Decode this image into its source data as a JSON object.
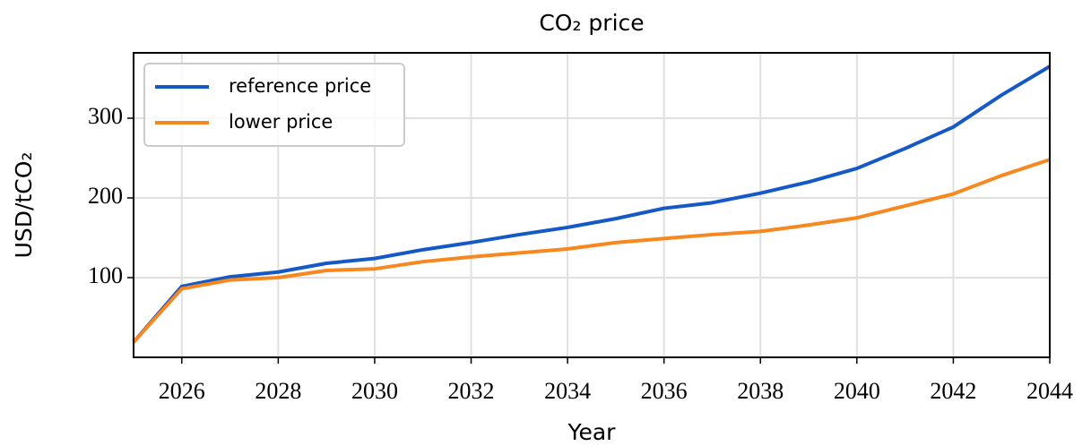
{
  "chart_data": {
    "type": "line",
    "title": "CO₂ price",
    "xlabel": "Year",
    "ylabel": "USD/tCO₂",
    "x": [
      2025,
      2026,
      2027,
      2028,
      2029,
      2030,
      2031,
      2032,
      2033,
      2034,
      2035,
      2036,
      2037,
      2038,
      2039,
      2040,
      2041,
      2042,
      2043,
      2044
    ],
    "series": [
      {
        "name": "reference price",
        "color": "#1559c6",
        "values": [
          19,
          89,
          101,
          107,
          118,
          124,
          135,
          144,
          154,
          163,
          174,
          187,
          194,
          206,
          220,
          237,
          262,
          289,
          329,
          365
        ]
      },
      {
        "name": "lower price",
        "color": "#f7871f",
        "values": [
          19,
          86,
          97,
          100,
          109,
          111,
          120,
          126,
          131,
          136,
          144,
          149,
          154,
          158,
          166,
          175,
          190,
          205,
          228,
          248
        ]
      }
    ],
    "xlim": [
      2025,
      2044
    ],
    "xticks": [
      2026,
      2028,
      2030,
      2032,
      2034,
      2036,
      2038,
      2040,
      2042,
      2044
    ],
    "ylim": [
      0,
      382
    ],
    "yticks": [
      100,
      200,
      300
    ],
    "grid": true,
    "legend": "upper-left"
  }
}
